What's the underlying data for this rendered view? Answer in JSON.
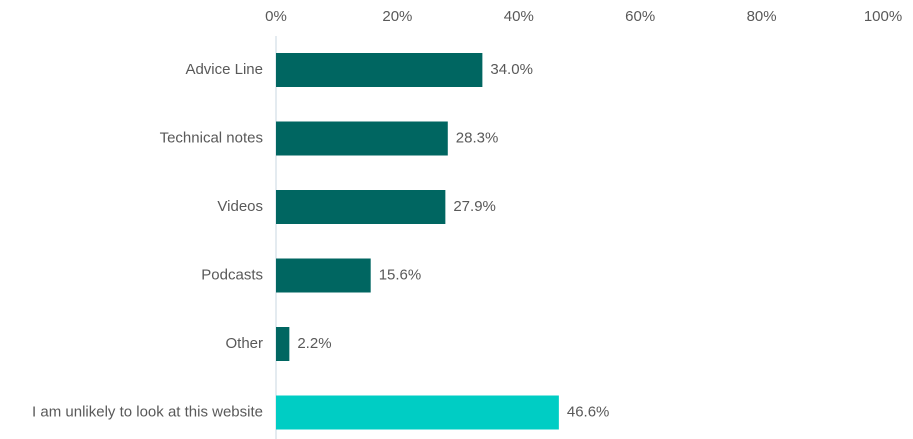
{
  "chart_data": {
    "type": "hbar",
    "categories": [
      "Advice Line",
      "Technical notes",
      "Videos",
      "Podcasts",
      "Other",
      "I am unlikely to look at this website"
    ],
    "values": [
      34.0,
      28.3,
      27.9,
      15.6,
      2.2,
      46.6
    ],
    "value_labels": [
      "34.0%",
      "28.3%",
      "27.9%",
      "15.6%",
      "2.2%",
      "46.6%"
    ],
    "colors": [
      "#006661",
      "#006661",
      "#006661",
      "#006661",
      "#006661",
      "#00cdc4"
    ],
    "xlim": [
      0,
      100
    ],
    "xticks": [
      {
        "value": 0,
        "label": "0%"
      },
      {
        "value": 20,
        "label": "20%"
      },
      {
        "value": 40,
        "label": "40%"
      },
      {
        "value": 60,
        "label": "60%"
      },
      {
        "value": 80,
        "label": "80%"
      },
      {
        "value": 100,
        "label": "100%"
      }
    ]
  }
}
